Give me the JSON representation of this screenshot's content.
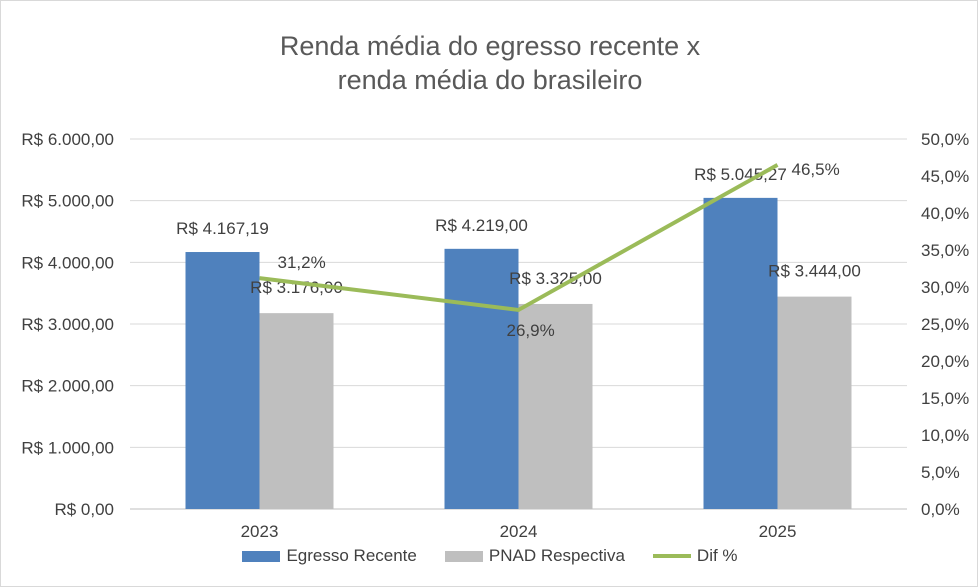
{
  "chart_data": {
    "type": "bar",
    "title": "Renda média do egresso recente x renda média do brasileiro",
    "title_lines": [
      "Renda média do egresso recente x",
      "renda média do brasileiro"
    ],
    "categories": [
      "2023",
      "2024",
      "2025"
    ],
    "series": [
      {
        "name": "Egresso Recente",
        "type": "bar",
        "axis": "left",
        "color": "#4f81bd",
        "values": [
          4167.19,
          4219.0,
          5045.27
        ],
        "labels": [
          "R$ 4.167,19",
          "R$ 4.219,00",
          "R$ 5.045,27"
        ]
      },
      {
        "name": "PNAD Respectiva",
        "type": "bar",
        "axis": "left",
        "color": "#bfbfbf",
        "values": [
          3176.0,
          3325.0,
          3444.0
        ],
        "labels": [
          "R$ 3.176,00",
          "R$ 3.325,00",
          "R$ 3.444,00"
        ]
      },
      {
        "name": "Dif %",
        "type": "line",
        "axis": "right",
        "color": "#9bbb59",
        "values": [
          31.2,
          26.9,
          46.5
        ],
        "labels": [
          "31,2%",
          "26,9%",
          "46,5%"
        ]
      }
    ],
    "y_left": {
      "min": 0,
      "max": 6000,
      "step": 1000,
      "tick_labels": [
        "R$ 0,00",
        "R$ 1.000,00",
        "R$ 2.000,00",
        "R$ 3.000,00",
        "R$ 4.000,00",
        "R$ 5.000,00",
        "R$ 6.000,00"
      ]
    },
    "y_right": {
      "min": 0,
      "max": 50,
      "step": 5,
      "tick_labels": [
        "0,0%",
        "5,0%",
        "10,0%",
        "15,0%",
        "20,0%",
        "25,0%",
        "30,0%",
        "35,0%",
        "40,0%",
        "45,0%",
        "50,0%"
      ]
    },
    "grid": true,
    "legend_position": "bottom"
  }
}
